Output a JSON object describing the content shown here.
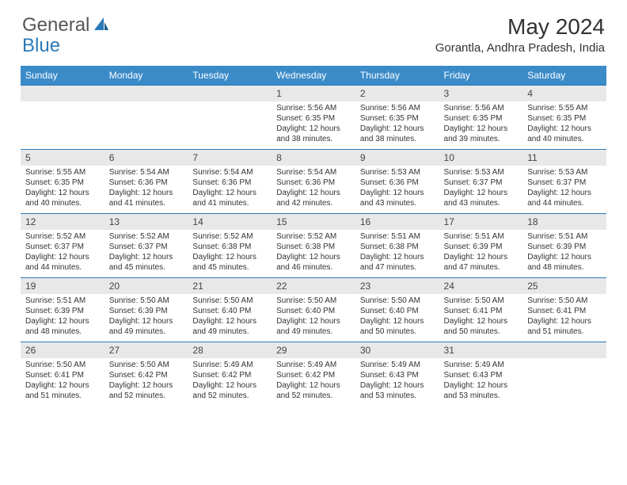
{
  "logo": {
    "general": "General",
    "blue": "Blue"
  },
  "title": "May 2024",
  "location": "Gorantla, Andhra Pradesh, India",
  "day_names": [
    "Sunday",
    "Monday",
    "Tuesday",
    "Wednesday",
    "Thursday",
    "Friday",
    "Saturday"
  ],
  "colors": {
    "header_bg": "#3b8bc8",
    "header_fg": "#ffffff",
    "daynum_bg": "#e8e8e8",
    "border": "#2a7ab8",
    "logo_gray": "#555555",
    "logo_blue": "#2a7ab8"
  },
  "weeks": [
    [
      null,
      null,
      null,
      {
        "n": "1",
        "sr": "5:56 AM",
        "ss": "6:35 PM",
        "dl": "12 hours and 38 minutes."
      },
      {
        "n": "2",
        "sr": "5:56 AM",
        "ss": "6:35 PM",
        "dl": "12 hours and 38 minutes."
      },
      {
        "n": "3",
        "sr": "5:56 AM",
        "ss": "6:35 PM",
        "dl": "12 hours and 39 minutes."
      },
      {
        "n": "4",
        "sr": "5:55 AM",
        "ss": "6:35 PM",
        "dl": "12 hours and 40 minutes."
      }
    ],
    [
      {
        "n": "5",
        "sr": "5:55 AM",
        "ss": "6:35 PM",
        "dl": "12 hours and 40 minutes."
      },
      {
        "n": "6",
        "sr": "5:54 AM",
        "ss": "6:36 PM",
        "dl": "12 hours and 41 minutes."
      },
      {
        "n": "7",
        "sr": "5:54 AM",
        "ss": "6:36 PM",
        "dl": "12 hours and 41 minutes."
      },
      {
        "n": "8",
        "sr": "5:54 AM",
        "ss": "6:36 PM",
        "dl": "12 hours and 42 minutes."
      },
      {
        "n": "9",
        "sr": "5:53 AM",
        "ss": "6:36 PM",
        "dl": "12 hours and 43 minutes."
      },
      {
        "n": "10",
        "sr": "5:53 AM",
        "ss": "6:37 PM",
        "dl": "12 hours and 43 minutes."
      },
      {
        "n": "11",
        "sr": "5:53 AM",
        "ss": "6:37 PM",
        "dl": "12 hours and 44 minutes."
      }
    ],
    [
      {
        "n": "12",
        "sr": "5:52 AM",
        "ss": "6:37 PM",
        "dl": "12 hours and 44 minutes."
      },
      {
        "n": "13",
        "sr": "5:52 AM",
        "ss": "6:37 PM",
        "dl": "12 hours and 45 minutes."
      },
      {
        "n": "14",
        "sr": "5:52 AM",
        "ss": "6:38 PM",
        "dl": "12 hours and 45 minutes."
      },
      {
        "n": "15",
        "sr": "5:52 AM",
        "ss": "6:38 PM",
        "dl": "12 hours and 46 minutes."
      },
      {
        "n": "16",
        "sr": "5:51 AM",
        "ss": "6:38 PM",
        "dl": "12 hours and 47 minutes."
      },
      {
        "n": "17",
        "sr": "5:51 AM",
        "ss": "6:39 PM",
        "dl": "12 hours and 47 minutes."
      },
      {
        "n": "18",
        "sr": "5:51 AM",
        "ss": "6:39 PM",
        "dl": "12 hours and 48 minutes."
      }
    ],
    [
      {
        "n": "19",
        "sr": "5:51 AM",
        "ss": "6:39 PM",
        "dl": "12 hours and 48 minutes."
      },
      {
        "n": "20",
        "sr": "5:50 AM",
        "ss": "6:39 PM",
        "dl": "12 hours and 49 minutes."
      },
      {
        "n": "21",
        "sr": "5:50 AM",
        "ss": "6:40 PM",
        "dl": "12 hours and 49 minutes."
      },
      {
        "n": "22",
        "sr": "5:50 AM",
        "ss": "6:40 PM",
        "dl": "12 hours and 49 minutes."
      },
      {
        "n": "23",
        "sr": "5:50 AM",
        "ss": "6:40 PM",
        "dl": "12 hours and 50 minutes."
      },
      {
        "n": "24",
        "sr": "5:50 AM",
        "ss": "6:41 PM",
        "dl": "12 hours and 50 minutes."
      },
      {
        "n": "25",
        "sr": "5:50 AM",
        "ss": "6:41 PM",
        "dl": "12 hours and 51 minutes."
      }
    ],
    [
      {
        "n": "26",
        "sr": "5:50 AM",
        "ss": "6:41 PM",
        "dl": "12 hours and 51 minutes."
      },
      {
        "n": "27",
        "sr": "5:50 AM",
        "ss": "6:42 PM",
        "dl": "12 hours and 52 minutes."
      },
      {
        "n": "28",
        "sr": "5:49 AM",
        "ss": "6:42 PM",
        "dl": "12 hours and 52 minutes."
      },
      {
        "n": "29",
        "sr": "5:49 AM",
        "ss": "6:42 PM",
        "dl": "12 hours and 52 minutes."
      },
      {
        "n": "30",
        "sr": "5:49 AM",
        "ss": "6:43 PM",
        "dl": "12 hours and 53 minutes."
      },
      {
        "n": "31",
        "sr": "5:49 AM",
        "ss": "6:43 PM",
        "dl": "12 hours and 53 minutes."
      },
      null
    ]
  ]
}
